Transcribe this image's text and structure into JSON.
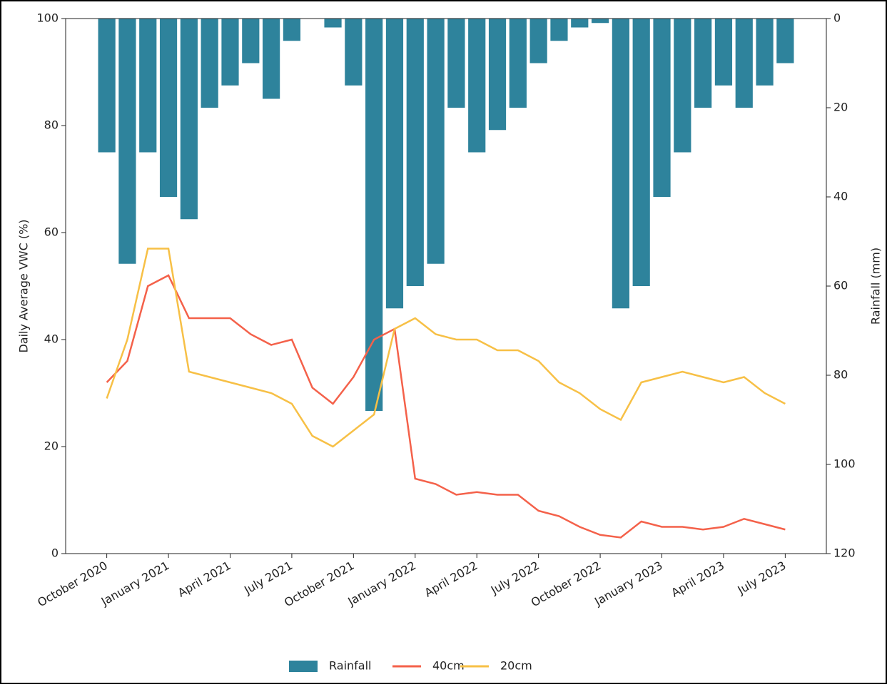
{
  "chart_data": {
    "type": "bar_line",
    "y_label": "Daily Average VWC (%)",
    "y2_label": "Rainfall (mm)",
    "x": [
      "2020-10",
      "2020-11",
      "2020-12",
      "2021-01",
      "2021-02",
      "2021-03",
      "2021-04",
      "2021-05",
      "2021-06",
      "2021-07",
      "2021-08",
      "2021-09",
      "2021-10",
      "2021-11",
      "2021-12",
      "2022-01",
      "2022-02",
      "2022-03",
      "2022-04",
      "2022-05",
      "2022-06",
      "2022-07",
      "2022-08",
      "2022-09",
      "2022-10",
      "2022-11",
      "2022-12",
      "2023-01",
      "2023-02",
      "2023-03",
      "2023-04",
      "2023-05",
      "2023-06",
      "2023-07"
    ],
    "xlim": [
      "2020-08",
      "2023-09"
    ],
    "xticks": [
      {
        "value": "2020-10",
        "label": "October 2020"
      },
      {
        "value": "2021-01",
        "label": "January 2021"
      },
      {
        "value": "2021-04",
        "label": "April 2021"
      },
      {
        "value": "2021-07",
        "label": "July 2021"
      },
      {
        "value": "2021-10",
        "label": "October 2021"
      },
      {
        "value": "2022-01",
        "label": "January 2022"
      },
      {
        "value": "2022-04",
        "label": "April 2022"
      },
      {
        "value": "2022-07",
        "label": "July 2022"
      },
      {
        "value": "2022-10",
        "label": "October 2022"
      },
      {
        "value": "2023-01",
        "label": "January 2023"
      },
      {
        "value": "2023-04",
        "label": "April 2023"
      },
      {
        "value": "2023-07",
        "label": "July 2023"
      }
    ],
    "ylim": [
      0,
      100
    ],
    "yticks": [
      0,
      20,
      40,
      60,
      80,
      100
    ],
    "y2lim": [
      0,
      120
    ],
    "y2ticks": [
      0,
      20,
      40,
      60,
      80,
      100,
      120
    ],
    "y2_inverted": true,
    "legend": "bottom",
    "series": [
      {
        "name": "Rainfall",
        "type": "bar",
        "axis": "y2",
        "color": "#2e839c",
        "values": [
          30,
          55,
          30,
          40,
          45,
          20,
          15,
          10,
          18,
          5,
          0,
          2,
          15,
          88,
          65,
          60,
          55,
          20,
          30,
          25,
          20,
          10,
          5,
          2,
          1,
          65,
          60,
          40,
          30,
          20,
          15,
          20,
          15,
          10
        ]
      },
      {
        "name": "40cm",
        "type": "line",
        "color": "#f4614a",
        "values": [
          32,
          36,
          50,
          52,
          44,
          44,
          44,
          41,
          39,
          40,
          31,
          28,
          33,
          40,
          42,
          14,
          13,
          11,
          11.5,
          11,
          11,
          8,
          7,
          5,
          3.5,
          3,
          6,
          5,
          5,
          4.5,
          5,
          6.5,
          5.5,
          4.5
        ]
      },
      {
        "name": "20cm",
        "type": "line",
        "color": "#f7c046",
        "values": [
          29,
          40,
          57,
          57,
          34,
          33,
          32,
          31,
          30,
          28,
          22,
          20,
          23,
          26,
          42,
          44,
          41,
          40,
          40,
          38,
          38,
          36,
          32,
          30,
          27,
          25,
          32,
          33,
          34,
          33,
          32,
          33,
          30,
          28
        ]
      }
    ]
  }
}
